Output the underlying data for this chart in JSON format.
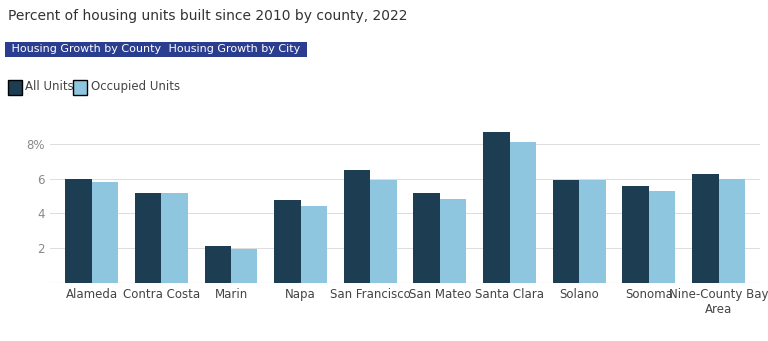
{
  "title": "Percent of housing units built since 2010 by county, 2022",
  "button1": "Housing Growth by County",
  "button2": "Housing Growth by City",
  "legend_all": "All Units",
  "legend_occ": "Occupied Units",
  "categories": [
    "Alameda",
    "Contra Costa",
    "Marin",
    "Napa",
    "San Francisco",
    "San Mateo",
    "Santa Clara",
    "Solano",
    "Sonoma",
    "Nine-County Bay\nArea"
  ],
  "all_units": [
    6.0,
    5.2,
    2.15,
    4.75,
    6.5,
    5.15,
    8.7,
    5.9,
    5.55,
    6.25
  ],
  "occupied_units": [
    5.8,
    5.2,
    1.95,
    4.45,
    5.9,
    4.85,
    8.1,
    5.95,
    5.3,
    6.0
  ],
  "bar_color_all": "#1d3d52",
  "bar_color_occ": "#8ec6e0",
  "background_color": "#ffffff",
  "ytick_positions": [
    0,
    2,
    4,
    6,
    8
  ],
  "ytick_labels": [
    "",
    "2",
    "4",
    "6",
    "8%"
  ],
  "ylim": [
    0,
    9.8
  ],
  "button_bg": "#2b3d8f",
  "button_text": "#ffffff",
  "title_fontsize": 10,
  "axis_fontsize": 8.5,
  "legend_fontsize": 8.5,
  "bar_width": 0.38
}
